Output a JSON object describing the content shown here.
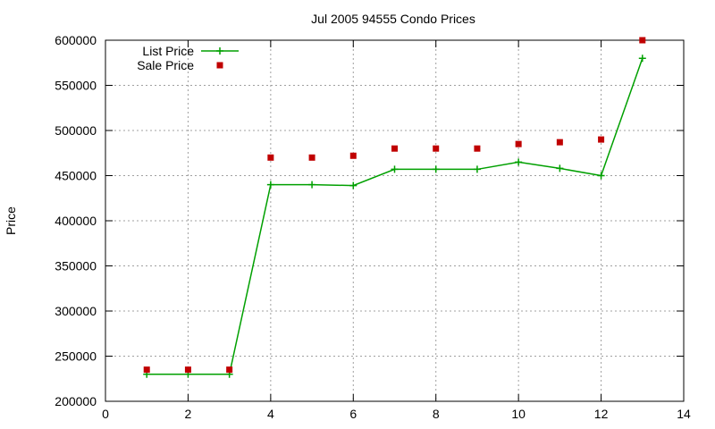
{
  "chart_data": {
    "type": "line",
    "title": "Jul 2005 94555 Condo Prices",
    "xlabel": "",
    "ylabel": "Price",
    "xlim": [
      0,
      14
    ],
    "ylim": [
      200000,
      600000
    ],
    "x_ticks": [
      "0",
      "2",
      "4",
      "6",
      "8",
      "10",
      "12",
      "14"
    ],
    "y_ticks": [
      "200000",
      "250000",
      "300000",
      "350000",
      "400000",
      "450000",
      "500000",
      "550000",
      "600000"
    ],
    "grid": true,
    "legend_position": "top-left",
    "x": [
      1,
      2,
      3,
      4,
      5,
      6,
      7,
      8,
      9,
      10,
      11,
      12,
      13
    ],
    "series": [
      {
        "name": "List Price",
        "style": "lines+points",
        "marker": "plus",
        "color": "#00a000",
        "values": [
          230000,
          230000,
          230000,
          440000,
          440000,
          439000,
          457000,
          457000,
          457000,
          465000,
          458000,
          450000,
          580000
        ]
      },
      {
        "name": "Sale Price",
        "style": "points",
        "marker": "square",
        "color": "#c00000",
        "values": [
          235000,
          235000,
          235000,
          470000,
          470000,
          472000,
          480000,
          480000,
          480000,
          485000,
          487000,
          490000,
          600000
        ]
      }
    ]
  }
}
